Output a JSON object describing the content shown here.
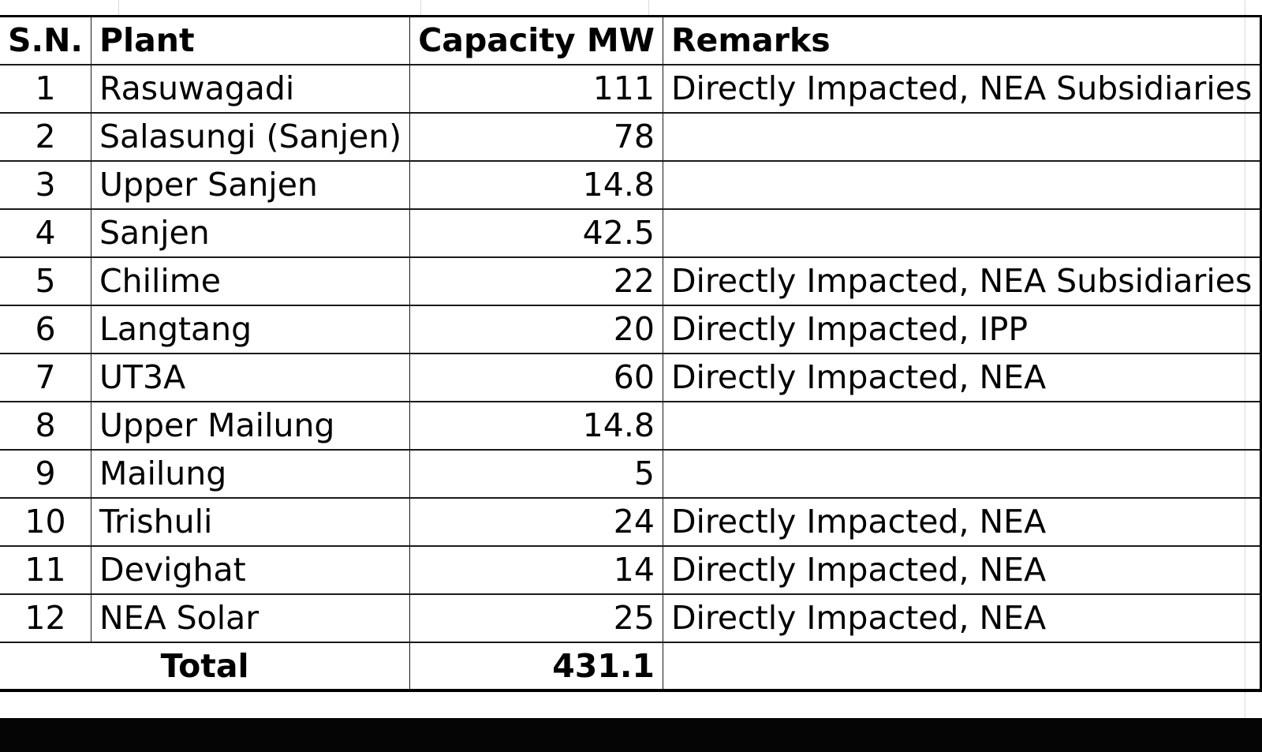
{
  "table": {
    "headers": {
      "sn": "S.N.",
      "plant": "Plant",
      "capacity": "Capacity MW",
      "remarks": "Remarks"
    },
    "rows": [
      {
        "sn": "1",
        "plant": "Rasuwagadi",
        "capacity": "111",
        "remarks": "Directly Impacted, NEA Subsidiaries"
      },
      {
        "sn": "2",
        "plant": "Salasungi (Sanjen)",
        "capacity": "78",
        "remarks": ""
      },
      {
        "sn": "3",
        "plant": "Upper Sanjen",
        "capacity": "14.8",
        "remarks": ""
      },
      {
        "sn": "4",
        "plant": "Sanjen",
        "capacity": "42.5",
        "remarks": ""
      },
      {
        "sn": "5",
        "plant": "Chilime",
        "capacity": "22",
        "remarks": "Directly Impacted, NEA Subsidiaries"
      },
      {
        "sn": "6",
        "plant": "Langtang",
        "capacity": "20",
        "remarks": "Directly Impacted, IPP"
      },
      {
        "sn": "7",
        "plant": "UT3A",
        "capacity": "60",
        "remarks": "Directly Impacted, NEA"
      },
      {
        "sn": "8",
        "plant": "Upper Mailung",
        "capacity": "14.8",
        "remarks": ""
      },
      {
        "sn": "9",
        "plant": "Mailung",
        "capacity": "5",
        "remarks": ""
      },
      {
        "sn": "10",
        "plant": "Trishuli",
        "capacity": "24",
        "remarks": "Directly Impacted, NEA"
      },
      {
        "sn": "11",
        "plant": "Devighat",
        "capacity": "14",
        "remarks": "Directly Impacted, NEA"
      },
      {
        "sn": "12",
        "plant": "NEA Solar",
        "capacity": "25",
        "remarks": "Directly Impacted, NEA"
      }
    ],
    "total": {
      "label": "Total",
      "capacity": "431.1",
      "remarks": ""
    }
  }
}
